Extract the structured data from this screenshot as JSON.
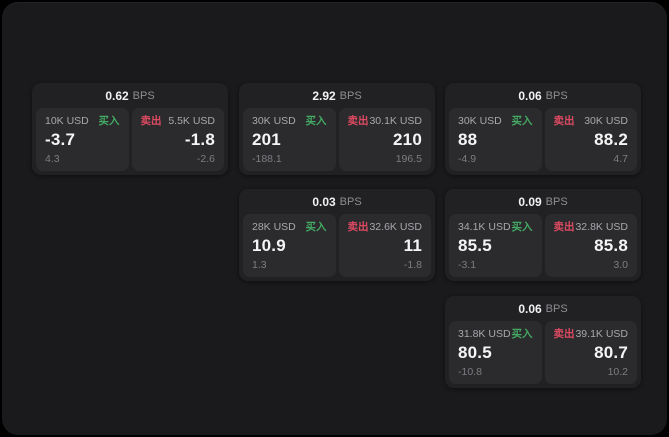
{
  "colors": {
    "buy_green": "#43a963",
    "sell_red": "#dd4a62",
    "window_bg": "#1a1a1c",
    "card_bg": "#212123",
    "panel_bg": "#2b2b2d"
  },
  "bps_unit": "BPS",
  "cards": [
    {
      "bps_value": "0.62",
      "bps_unit": "BPS",
      "grid": {
        "col": 1,
        "row": 1
      },
      "buy": {
        "amount": "10K USD",
        "side_label": "买入",
        "value": "-3.7",
        "change": "4.3"
      },
      "sell": {
        "side_label": "卖出",
        "amount": "5.5K USD",
        "value": "-1.8",
        "change": "-2.6"
      }
    },
    {
      "bps_value": "2.92",
      "bps_unit": "BPS",
      "grid": {
        "col": 2,
        "row": 1
      },
      "buy": {
        "amount": "30K USD",
        "side_label": "买入",
        "value": "201",
        "change": "-188.1"
      },
      "sell": {
        "side_label": "卖出",
        "amount": "30.1K USD",
        "value": "210",
        "change": "196.5"
      }
    },
    {
      "bps_value": "0.06",
      "bps_unit": "BPS",
      "grid": {
        "col": 3,
        "row": 1
      },
      "buy": {
        "amount": "30K USD",
        "side_label": "买入",
        "value": "88",
        "change": "-4.9"
      },
      "sell": {
        "side_label": "卖出",
        "amount": "30K USD",
        "value": "88.2",
        "change": "4.7"
      }
    },
    {
      "bps_value": "0.03",
      "bps_unit": "BPS",
      "grid": {
        "col": 2,
        "row": 2
      },
      "buy": {
        "amount": "28K USD",
        "side_label": "买入",
        "value": "10.9",
        "change": "1.3"
      },
      "sell": {
        "side_label": "卖出",
        "amount": "32.6K USD",
        "value": "11",
        "change": "-1.8"
      }
    },
    {
      "bps_value": "0.09",
      "bps_unit": "BPS",
      "grid": {
        "col": 3,
        "row": 2
      },
      "buy": {
        "amount": "34.1K USD",
        "side_label": "买入",
        "value": "85.5",
        "change": "-3.1"
      },
      "sell": {
        "side_label": "卖出",
        "amount": "32.8K USD",
        "value": "85.8",
        "change": "3.0"
      }
    },
    {
      "bps_value": "0.06",
      "bps_unit": "BPS",
      "grid": {
        "col": 3,
        "row": 3
      },
      "buy": {
        "amount": "31.8K USD",
        "side_label": "买入",
        "value": "80.5",
        "change": "-10.8"
      },
      "sell": {
        "side_label": "卖出",
        "amount": "39.1K USD",
        "value": "80.7",
        "change": "10.2"
      }
    }
  ]
}
